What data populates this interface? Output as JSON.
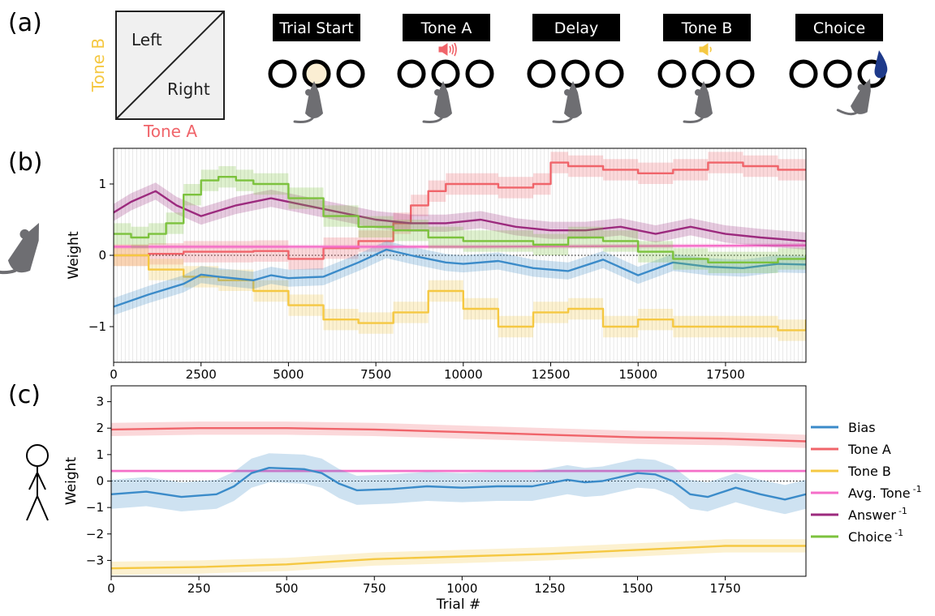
{
  "figure": {
    "panel_labels": [
      "(a)",
      "(b)",
      "(c)"
    ],
    "colors": {
      "bias": "#3b8bc9",
      "tone_a": "#f0646a",
      "tone_b": "#f5c842",
      "avg_tone": "#f56ec8",
      "answer": "#9c2a7e",
      "choice": "#7cc23d",
      "label_box": "#000000",
      "port_light": "#fbeed3",
      "water_drop": "#1e3a8a"
    }
  },
  "panel_a": {
    "quadrant": {
      "upper_label": "Left",
      "lower_label": "Right",
      "y_axis_label": "Tone B",
      "x_axis_label": "Tone A"
    },
    "stages": [
      {
        "label": "Trial Start",
        "icon": "light-icon"
      },
      {
        "label": "Tone A",
        "icon": "speaker-loud-icon"
      },
      {
        "label": "Delay",
        "icon": "none"
      },
      {
        "label": "Tone B",
        "icon": "speaker-soft-icon"
      },
      {
        "label": "Choice",
        "icon": "water-drop-icon"
      }
    ]
  },
  "chart_data": [
    {
      "type": "line",
      "panel": "(b)",
      "subject": "rat-icon",
      "ylabel": "Weight",
      "xlabel": "",
      "xlim": [
        0,
        19800
      ],
      "ylim": [
        -1.5,
        1.5
      ],
      "xticks": [
        0,
        2500,
        5000,
        7500,
        10000,
        12500,
        15000,
        17500
      ],
      "xtick_labels": [
        "0",
        "2500",
        "5000",
        "7500",
        "10000",
        "12500",
        "15000",
        "17500"
      ],
      "yticks": [
        -1,
        0,
        1
      ],
      "ytick_labels": [
        "−1",
        "0",
        "1"
      ],
      "session_boundaries": true,
      "zero_line": "dotted",
      "series": [
        {
          "key": "tone_a",
          "step": true,
          "x": [
            0,
            1000,
            2000,
            3000,
            4000,
            5000,
            6000,
            7000,
            8000,
            8500,
            9000,
            9500,
            10000,
            11000,
            12000,
            12500,
            13000,
            14000,
            15000,
            16000,
            17000,
            18000,
            19000,
            19800
          ],
          "y": [
            0.0,
            0.02,
            0.05,
            0.05,
            0.06,
            -0.05,
            0.1,
            0.2,
            0.45,
            0.7,
            0.9,
            1.0,
            1.0,
            0.95,
            1.0,
            1.3,
            1.25,
            1.2,
            1.15,
            1.2,
            1.3,
            1.25,
            1.2,
            1.2
          ],
          "err": [
            0.15,
            0.15,
            0.15,
            0.15,
            0.15,
            0.15,
            0.15,
            0.15,
            0.15,
            0.15,
            0.15,
            0.15,
            0.15,
            0.15,
            0.15,
            0.15,
            0.15,
            0.15,
            0.15,
            0.15,
            0.15,
            0.15,
            0.15,
            0.15
          ]
        },
        {
          "key": "tone_b",
          "step": true,
          "x": [
            0,
            1000,
            2000,
            3000,
            4000,
            5000,
            6000,
            7000,
            8000,
            9000,
            10000,
            11000,
            12000,
            13000,
            14000,
            15000,
            16000,
            17000,
            18000,
            19000,
            19800
          ],
          "y": [
            0.0,
            -0.2,
            -0.3,
            -0.35,
            -0.5,
            -0.7,
            -0.9,
            -0.95,
            -0.8,
            -0.5,
            -0.75,
            -1.0,
            -0.8,
            -0.75,
            -1.0,
            -0.9,
            -1.0,
            -1.0,
            -1.0,
            -1.05,
            -0.9
          ],
          "err": [
            0.15,
            0.15,
            0.15,
            0.15,
            0.15,
            0.15,
            0.15,
            0.15,
            0.15,
            0.15,
            0.15,
            0.15,
            0.15,
            0.15,
            0.15,
            0.15,
            0.15,
            0.15,
            0.15,
            0.15,
            0.15
          ]
        },
        {
          "key": "bias",
          "step": false,
          "x": [
            0,
            1000,
            2000,
            2500,
            3000,
            4000,
            4500,
            5000,
            6000,
            7000,
            7800,
            8500,
            9500,
            10000,
            11000,
            12000,
            13000,
            14000,
            15000,
            16000,
            17000,
            18000,
            19000,
            19800
          ],
          "y": [
            -0.72,
            -0.55,
            -0.4,
            -0.27,
            -0.3,
            -0.35,
            -0.28,
            -0.32,
            -0.3,
            -0.1,
            0.08,
            0.0,
            -0.1,
            -0.12,
            -0.08,
            -0.18,
            -0.22,
            -0.06,
            -0.28,
            -0.1,
            -0.16,
            -0.18,
            -0.12,
            -0.13
          ],
          "err": [
            0.12,
            0.12,
            0.12,
            0.12,
            0.12,
            0.12,
            0.12,
            0.12,
            0.12,
            0.12,
            0.12,
            0.12,
            0.12,
            0.12,
            0.12,
            0.12,
            0.12,
            0.12,
            0.12,
            0.12,
            0.12,
            0.12,
            0.12,
            0.12
          ]
        },
        {
          "key": "avg_tone",
          "step": false,
          "x": [
            0,
            5000,
            10000,
            15000,
            19800
          ],
          "y": [
            0.12,
            0.12,
            0.12,
            0.13,
            0.14
          ],
          "err": [
            0.03,
            0.03,
            0.03,
            0.03,
            0.03
          ]
        },
        {
          "key": "answer",
          "step": false,
          "x": [
            0,
            500,
            1200,
            1800,
            2500,
            3500,
            4500,
            5500,
            6500,
            7500,
            8500,
            9500,
            10500,
            11500,
            12500,
            13500,
            14500,
            15500,
            16500,
            17500,
            18500,
            19800
          ],
          "y": [
            0.6,
            0.75,
            0.9,
            0.7,
            0.55,
            0.7,
            0.8,
            0.7,
            0.6,
            0.5,
            0.45,
            0.45,
            0.5,
            0.4,
            0.35,
            0.35,
            0.4,
            0.3,
            0.4,
            0.3,
            0.25,
            0.2
          ],
          "err": [
            0.12,
            0.12,
            0.12,
            0.12,
            0.12,
            0.12,
            0.12,
            0.12,
            0.12,
            0.12,
            0.12,
            0.12,
            0.12,
            0.12,
            0.12,
            0.12,
            0.12,
            0.12,
            0.12,
            0.12,
            0.12,
            0.12
          ]
        },
        {
          "key": "choice",
          "step": true,
          "x": [
            0,
            500,
            1000,
            1500,
            2000,
            2500,
            3000,
            3500,
            4000,
            5000,
            6000,
            7000,
            8000,
            9000,
            10000,
            11000,
            12000,
            13000,
            14000,
            15000,
            16000,
            17000,
            18000,
            19000,
            19800
          ],
          "y": [
            0.3,
            0.25,
            0.3,
            0.45,
            0.85,
            1.05,
            1.1,
            1.05,
            1.0,
            0.8,
            0.55,
            0.4,
            0.35,
            0.25,
            0.2,
            0.2,
            0.15,
            0.25,
            0.2,
            0.05,
            -0.05,
            -0.1,
            -0.1,
            -0.05,
            0.0
          ],
          "err": [
            0.15,
            0.15,
            0.15,
            0.15,
            0.15,
            0.15,
            0.15,
            0.15,
            0.15,
            0.15,
            0.15,
            0.15,
            0.15,
            0.15,
            0.15,
            0.15,
            0.15,
            0.15,
            0.15,
            0.15,
            0.15,
            0.15,
            0.15,
            0.15,
            0.15
          ]
        }
      ]
    },
    {
      "type": "line",
      "panel": "(c)",
      "subject": "human-icon",
      "ylabel": "Weight",
      "xlabel": "Trial #",
      "xlim": [
        0,
        1980
      ],
      "ylim": [
        -3.6,
        3.6
      ],
      "xticks": [
        0,
        250,
        500,
        750,
        1000,
        1250,
        1500,
        1750
      ],
      "xtick_labels": [
        "0",
        "250",
        "500",
        "750",
        "1000",
        "1250",
        "1500",
        "1750"
      ],
      "yticks": [
        -3,
        -2,
        -1,
        0,
        1,
        2,
        3
      ],
      "ytick_labels": [
        "−3",
        "−2",
        "−1",
        "0",
        "1",
        "2",
        "3"
      ],
      "zero_line": "dotted",
      "series": [
        {
          "key": "tone_a",
          "step": false,
          "x": [
            0,
            250,
            500,
            750,
            1000,
            1250,
            1500,
            1750,
            1980
          ],
          "y": [
            1.95,
            2.0,
            2.0,
            1.95,
            1.85,
            1.75,
            1.65,
            1.6,
            1.5
          ],
          "err": [
            0.25,
            0.25,
            0.25,
            0.25,
            0.25,
            0.25,
            0.25,
            0.25,
            0.25
          ]
        },
        {
          "key": "avg_tone",
          "step": false,
          "x": [
            0,
            500,
            1000,
            1500,
            1980
          ],
          "y": [
            0.38,
            0.38,
            0.38,
            0.38,
            0.38
          ],
          "err": [
            0.06,
            0.06,
            0.06,
            0.06,
            0.06
          ]
        },
        {
          "key": "bias",
          "step": false,
          "x": [
            0,
            100,
            200,
            300,
            350,
            400,
            450,
            550,
            600,
            650,
            700,
            800,
            900,
            1000,
            1100,
            1200,
            1300,
            1350,
            1400,
            1500,
            1550,
            1600,
            1650,
            1700,
            1780,
            1850,
            1920,
            1980
          ],
          "y": [
            -0.5,
            -0.4,
            -0.6,
            -0.5,
            -0.2,
            0.3,
            0.5,
            0.45,
            0.3,
            -0.1,
            -0.35,
            -0.3,
            -0.2,
            -0.25,
            -0.2,
            -0.2,
            0.05,
            -0.05,
            0.0,
            0.3,
            0.25,
            0.0,
            -0.5,
            -0.6,
            -0.25,
            -0.5,
            -0.7,
            -0.5
          ],
          "err": [
            0.55,
            0.55,
            0.55,
            0.55,
            0.55,
            0.55,
            0.55,
            0.55,
            0.55,
            0.55,
            0.55,
            0.55,
            0.55,
            0.55,
            0.55,
            0.55,
            0.55,
            0.55,
            0.55,
            0.55,
            0.55,
            0.55,
            0.55,
            0.55,
            0.55,
            0.55,
            0.55,
            0.55
          ]
        },
        {
          "key": "tone_b",
          "step": false,
          "x": [
            0,
            250,
            500,
            750,
            1000,
            1250,
            1500,
            1750,
            1980
          ],
          "y": [
            -3.3,
            -3.25,
            -3.15,
            -2.95,
            -2.85,
            -2.75,
            -2.6,
            -2.45,
            -2.45
          ],
          "err": [
            0.25,
            0.25,
            0.25,
            0.25,
            0.25,
            0.25,
            0.25,
            0.25,
            0.25
          ]
        }
      ]
    }
  ],
  "legend": {
    "placement": "right of panel (c)",
    "items": [
      {
        "key": "bias",
        "label": "Bias",
        "sup": ""
      },
      {
        "key": "tone_a",
        "label": "Tone A",
        "sup": ""
      },
      {
        "key": "tone_b",
        "label": "Tone B",
        "sup": ""
      },
      {
        "key": "avg_tone",
        "label": "Avg. Tone",
        "sup": "-1"
      },
      {
        "key": "answer",
        "label": "Answer",
        "sup": "-1"
      },
      {
        "key": "choice",
        "label": "Choice",
        "sup": "-1"
      }
    ]
  }
}
